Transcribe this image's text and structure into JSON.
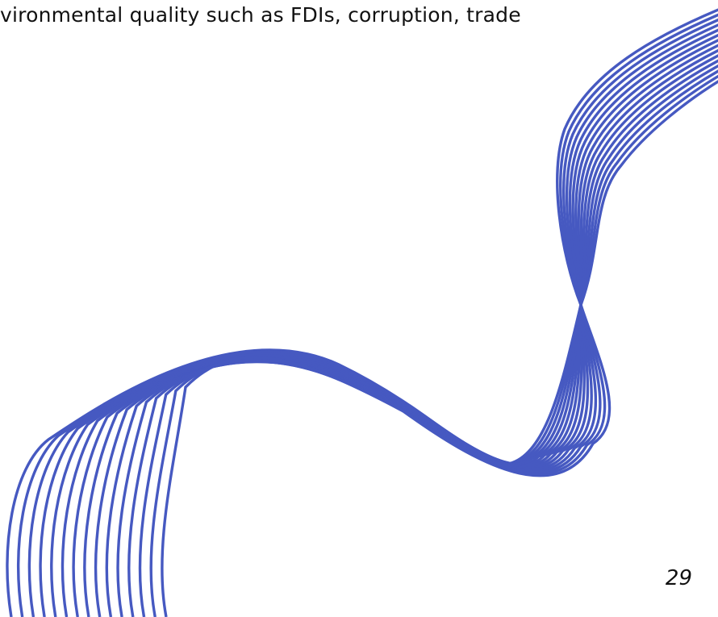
{
  "document": {
    "body_text_fragment": "vironmental quality such as FDIs, corruption, trade",
    "page_number": "29"
  },
  "decoration": {
    "wave_icon": "wavy-line-bundle",
    "wave_color": "#4659c1",
    "line_count": 15
  }
}
